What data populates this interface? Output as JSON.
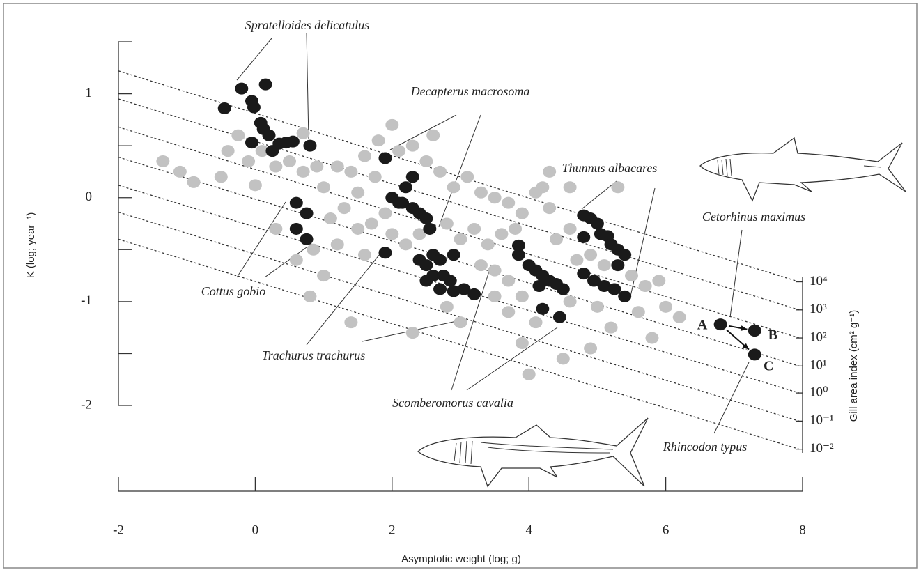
{
  "chart_data": {
    "type": "scatter",
    "x_label": "Asymptotic weight (log; g)",
    "y_label": "K (log; year⁻¹)",
    "y2_label": "Gill area index (cm² g⁻¹)",
    "xlim": [
      -2,
      8
    ],
    "xticks": [
      -2,
      0,
      2,
      4,
      6,
      8
    ],
    "ylim": [
      -2,
      1.5
    ],
    "yticks": [
      -2,
      -1,
      0,
      1
    ],
    "yminorticks": [
      -1.5,
      -0.5,
      0.5,
      1.5
    ],
    "series": [
      {
        "color": "#c2c2c2",
        "x": [
          -1.35,
          -0.9,
          -0.5,
          -0.4,
          -0.25,
          -0.1,
          0.1,
          0.3,
          0.5,
          0.7,
          0.7,
          0.9,
          1.0,
          1.2,
          1.4,
          1.5,
          1.6,
          1.75,
          1.8,
          2.0,
          2.1,
          2.3,
          2.5,
          2.7,
          2.9,
          3.1,
          3.3,
          3.5,
          3.7,
          3.9,
          4.1,
          4.3,
          4.6,
          4.2,
          4.6,
          1.1,
          1.3,
          1.5,
          1.7,
          1.9,
          1.2,
          1.6,
          2.0,
          2.2,
          2.4,
          2.8,
          3.0,
          3.2,
          3.4,
          3.6,
          3.3,
          3.5,
          3.7,
          3.5,
          3.9,
          3.7,
          4.1,
          4.6,
          4.7,
          4.9,
          5.1,
          5.5,
          5.7,
          5.9,
          6.0,
          6.2,
          5.6,
          5.2,
          4.9,
          4.5,
          3.9,
          2.3,
          1.4,
          0.6,
          0.3,
          0.85,
          1.0,
          2.8,
          3.0,
          5.8,
          4.0,
          0.8,
          5.3,
          4.3,
          -1.1,
          0.0,
          2.6,
          3.8,
          4.4,
          5.0
        ],
        "values": [
          0.35,
          0.15,
          0.2,
          0.45,
          0.6,
          0.35,
          0.45,
          0.3,
          0.35,
          0.62,
          0.25,
          0.3,
          0.1,
          0.3,
          0.25,
          0.05,
          0.4,
          0.2,
          0.55,
          0.7,
          0.45,
          0.5,
          0.35,
          0.25,
          0.1,
          0.2,
          0.05,
          0.0,
          -0.05,
          -0.15,
          0.05,
          -0.1,
          0.1,
          0.1,
          -0.3,
          -0.2,
          -0.1,
          -0.3,
          -0.25,
          -0.15,
          -0.45,
          -0.55,
          -0.35,
          -0.45,
          -0.35,
          -0.25,
          -0.4,
          -0.3,
          -0.45,
          -0.35,
          -0.65,
          -0.7,
          -0.8,
          -0.95,
          -0.95,
          -1.1,
          -1.2,
          -1.0,
          -0.6,
          -0.55,
          -0.65,
          -0.75,
          -0.85,
          -0.8,
          -1.05,
          -1.15,
          -1.1,
          -1.25,
          -1.45,
          -1.55,
          -1.4,
          -1.3,
          -1.2,
          -0.6,
          -0.3,
          -0.5,
          -0.75,
          -1.05,
          -1.2,
          -1.35,
          -1.7,
          -0.95,
          0.1,
          0.25,
          0.25,
          0.12,
          0.6,
          -0.3,
          -0.4,
          -1.05
        ]
      },
      {
        "color": "#1a1a1a",
        "x": [
          -0.45,
          -0.2,
          0.15,
          -0.05,
          -0.02,
          0.08,
          0.12,
          0.2,
          0.25,
          0.35,
          0.45,
          0.55,
          0.8,
          -0.05,
          0.6,
          0.75,
          0.6,
          0.75,
          1.9,
          2.0,
          2.3,
          2.2,
          2.15,
          2.3,
          2.4,
          2.5,
          2.55,
          2.1,
          1.9,
          2.4,
          2.5,
          2.6,
          2.7,
          2.6,
          2.75,
          2.5,
          2.85,
          2.7,
          2.9,
          3.05,
          3.2,
          2.9,
          3.85,
          3.85,
          4.0,
          4.1,
          4.2,
          4.3,
          4.4,
          4.5,
          4.2,
          4.45,
          4.15,
          4.8,
          4.9,
          5.0,
          5.05,
          5.15,
          5.2,
          5.3,
          5.4,
          4.8,
          5.3,
          4.8,
          4.95,
          5.1,
          5.25,
          5.4,
          6.8,
          7.3,
          7.3
        ],
        "values": [
          0.86,
          1.05,
          1.09,
          0.93,
          0.87,
          0.72,
          0.66,
          0.6,
          0.45,
          0.52,
          0.53,
          0.54,
          0.5,
          0.53,
          -0.05,
          -0.15,
          -0.3,
          -0.4,
          0.38,
          0.0,
          0.2,
          0.1,
          -0.05,
          -0.1,
          -0.15,
          -0.2,
          -0.3,
          -0.05,
          -0.53,
          -0.6,
          -0.65,
          -0.55,
          -0.6,
          -0.75,
          -0.75,
          -0.8,
          -0.8,
          -0.88,
          -0.9,
          -0.88,
          -0.93,
          -0.55,
          -0.46,
          -0.55,
          -0.65,
          -0.7,
          -0.75,
          -0.8,
          -0.83,
          -0.88,
          -1.07,
          -1.15,
          -0.85,
          -0.17,
          -0.2,
          -0.25,
          -0.35,
          -0.37,
          -0.45,
          -0.5,
          -0.55,
          -0.38,
          -0.65,
          -0.73,
          -0.8,
          -0.85,
          -0.88,
          -0.95,
          -1.22,
          -1.28,
          -1.51
        ]
      }
    ],
    "point_labels": [
      "A",
      "B",
      "C"
    ],
    "isolines": [
      {
        "label": "10⁴",
        "x": [
          -2,
          7.95
        ],
        "y": [
          1.22,
          -0.81
        ]
      },
      {
        "label": "10³",
        "x": [
          -2,
          7.95
        ],
        "y": [
          0.95,
          -1.08
        ]
      },
      {
        "label": "10²",
        "x": [
          -2,
          7.95
        ],
        "y": [
          0.68,
          -1.35
        ]
      },
      {
        "label": "10¹",
        "x": [
          -2,
          7.95
        ],
        "y": [
          0.39,
          -1.62
        ]
      },
      {
        "label": "10⁰",
        "x": [
          -2,
          7.95
        ],
        "y": [
          0.12,
          -1.88
        ]
      },
      {
        "label": "10⁻¹",
        "x": [
          -2,
          7.95
        ],
        "y": [
          -0.14,
          -2.15
        ]
      },
      {
        "label": "10⁻²",
        "x": [
          -2,
          7.95
        ],
        "y": [
          -0.4,
          -2.42
        ]
      }
    ],
    "annotations": [
      "Spratelloides delicatulus",
      "Decapterus macrosoma",
      "Thunnus albacares",
      "Cetorhinus maximus",
      "Cottus gobio",
      "Trachurus trachurus",
      "Scomberomorus cavalia",
      "Rhincodon typus"
    ]
  }
}
